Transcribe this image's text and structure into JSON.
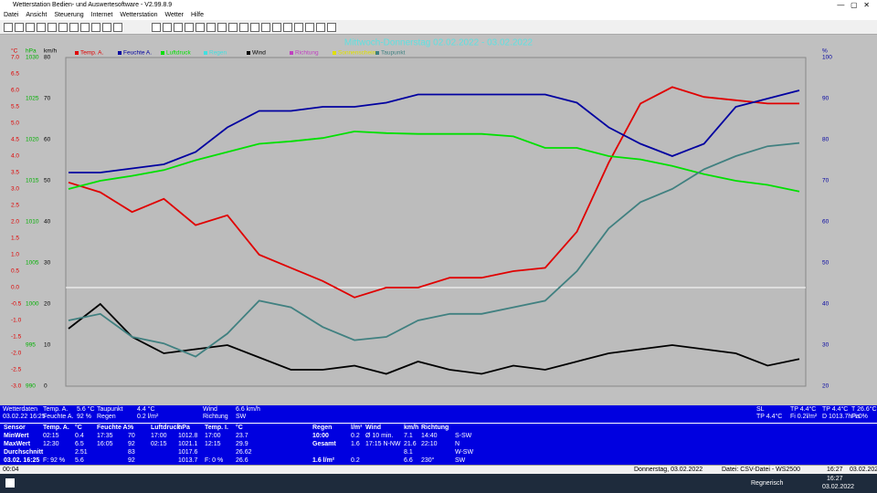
{
  "window": {
    "title": "Wetterstation Bedien- und Auswertesoftware - V2.99.8.9"
  },
  "menu": [
    "Datei",
    "Ansicht",
    "Steuerung",
    "Internet",
    "Wetterstation",
    "Wetter",
    "Hilfe"
  ],
  "chart": {
    "type": "line",
    "title": "Mittwoch-Donnerstag 02.02.2022 - 03.02.2022",
    "axis_units": [
      "°C",
      "hPa",
      "km/h",
      "%"
    ],
    "ylim": [
      -3,
      7
    ],
    "yticks": [
      {
        "value": 7,
        "label": "7.0"
      },
      {
        "value": 6.5,
        "label": "6.5"
      },
      {
        "value": 6,
        "label": "6.0"
      },
      {
        "value": 5.5,
        "label": "5.5"
      },
      {
        "value": 5,
        "label": "5.0"
      },
      {
        "value": 4.5,
        "label": "4.5"
      },
      {
        "value": 4,
        "label": "4.0"
      },
      {
        "value": 3.5,
        "label": "3.5"
      },
      {
        "value": 3,
        "label": "3.0"
      },
      {
        "value": 2.5,
        "label": "2.5"
      },
      {
        "value": 2,
        "label": "2.0"
      },
      {
        "value": 1.5,
        "label": "1.5"
      },
      {
        "value": 1,
        "label": "1.0"
      },
      {
        "value": 0.5,
        "label": "0.5"
      },
      {
        "value": 0,
        "label": "0.0"
      },
      {
        "value": -0.5,
        "label": "-0.5"
      },
      {
        "value": -1,
        "label": "-1.0"
      },
      {
        "value": -1.5,
        "label": "-1.5"
      },
      {
        "value": -2,
        "label": "-2.0"
      },
      {
        "value": -2.5,
        "label": "-2.5"
      },
      {
        "value": -3,
        "label": "-3.0"
      }
    ],
    "y2lim": [
      20,
      100
    ],
    "y2ticks": [
      100,
      90,
      80,
      70,
      60,
      50,
      40,
      30,
      20
    ],
    "y3lim": [
      990,
      1030
    ],
    "y3ticks": [
      1030,
      1025,
      1020,
      1015,
      1010,
      1005,
      1000,
      995,
      990
    ],
    "y4lim": [
      0,
      80
    ],
    "y4ticks": [
      80,
      70,
      60,
      50,
      40,
      30,
      20,
      10,
      0
    ],
    "series": [
      {
        "name": "Temp. A.",
        "color": "#e00000",
        "axis": "y",
        "values": [
          3.2,
          2.9,
          2.3,
          2.7,
          1.9,
          2.2,
          1.0,
          0.6,
          0.2,
          -0.3,
          0.0,
          0.0,
          0.3,
          0.3,
          0.5,
          0.6,
          1.7,
          3.8,
          5.6,
          6.1,
          5.8,
          5.7,
          5.6,
          5.6
        ]
      },
      {
        "name": "Feuchte A.",
        "color": "#0000a0",
        "axis": "y2",
        "values": [
          72,
          72,
          73,
          74,
          77,
          83,
          87,
          87,
          88,
          88,
          89,
          91,
          91,
          91,
          91,
          91,
          89,
          83,
          79,
          76,
          79,
          88,
          90,
          92
        ]
      },
      {
        "name": "Luftdruck",
        "color": "#00e000",
        "axis": "y3",
        "values": [
          1014.0,
          1015.0,
          1015.6,
          1016.3,
          1017.5,
          1018.5,
          1019.5,
          1019.8,
          1020.2,
          1021.0,
          1020.8,
          1020.7,
          1020.7,
          1020.7,
          1020.4,
          1019.0,
          1019.0,
          1018.0,
          1017.6,
          1016.8,
          1015.8,
          1015.0,
          1014.5,
          1013.7
        ]
      },
      {
        "name": "Regen",
        "color": "#40e0e0"
      },
      {
        "name": "Wind",
        "color": "#000000",
        "axis": "y4",
        "values": [
          14,
          20,
          12,
          8,
          9,
          10,
          7,
          4,
          4,
          5,
          3,
          6,
          4,
          3,
          5,
          4,
          6,
          8,
          9,
          10,
          9,
          8,
          5,
          6.6
        ]
      },
      {
        "name": "Richtung",
        "color": "#c040c0"
      },
      {
        "name": "Sonnenschein",
        "color": "#e0e000"
      },
      {
        "name": "Taupunkt",
        "color": "#408080",
        "axis": "y",
        "values": [
          -1.0,
          -0.8,
          -1.5,
          -1.7,
          -2.1,
          -1.4,
          -0.4,
          -0.6,
          -1.2,
          -1.6,
          -1.5,
          -1.0,
          -0.8,
          -0.8,
          -0.6,
          -0.4,
          0.5,
          1.8,
          2.6,
          3.0,
          3.6,
          4.0,
          4.3,
          4.4
        ]
      }
    ]
  },
  "info": [
    [
      "Wetterdaten",
      "03.02.22 16:25"
    ],
    [
      "Temp. A.",
      "Feuchte A."
    ],
    [
      "5.6 °C",
      "92 %"
    ],
    [
      "Taupunkt",
      "Regen"
    ],
    [
      "4.4 °C",
      "0.2 l/m²"
    ],
    [
      "Wind",
      "Richtung"
    ],
    [
      "6.6 km/h",
      "SW"
    ]
  ],
  "info_right": [
    [
      "SL",
      "TP 4.4°C"
    ],
    [
      "TP 4.4°C",
      "Fi 0.2l/m²"
    ],
    [
      "TP 4.4°C",
      "D 1013.7hPa"
    ],
    [
      "T 26.6°C",
      "Fi 0%"
    ]
  ],
  "stats": {
    "left": [
      [
        "Sensor",
        "Temp. A.",
        "°C",
        "Feuchte A.",
        "%",
        "Luftdruck",
        "hPa",
        "Temp. I.",
        "°C"
      ],
      [
        "MinWert",
        "02:15",
        "0.4",
        "17:35",
        "70",
        "17:00",
        "1012.8",
        "17:00",
        "23.7"
      ],
      [
        "MaxWert",
        "12:30",
        "6.5",
        "16:05",
        "92",
        "02:15",
        "1021.1",
        "12:15",
        "29.9"
      ],
      [
        "Durchschnitt",
        null,
        "2.51",
        null,
        "83",
        null,
        "1017.6",
        null,
        "26.62"
      ],
      [
        "03.02. 16:25",
        "F: 92 %",
        "5.6",
        null,
        "92",
        null,
        "1013.7",
        "F: 0 %",
        "26.6"
      ]
    ],
    "right": [
      [
        "Regen",
        "l/m²",
        "Wind",
        "km/h",
        "Richtung",
        null
      ],
      [
        "10:00",
        "0.2",
        "Ø 10 min.",
        "7.1",
        "14:40",
        "S-SW"
      ],
      [
        "Gesamt",
        "1.6",
        "17:15 N-NW",
        "21.6",
        "22:10",
        "N"
      ],
      [
        null,
        null,
        null,
        "8.1",
        null,
        "W-SW"
      ],
      [
        "1.6 l/m²",
        "0.2",
        null,
        "6.6",
        "230°",
        "SW"
      ]
    ]
  },
  "status": [
    "00:04",
    "Donnerstag, 03.02.2022",
    "Datei: CSV-Datei - WS2500",
    "16:27",
    "03.02.2022"
  ],
  "taskbar": {
    "weather": "Regnerisch",
    "time": "16:27",
    "date": "03.02.2022"
  }
}
